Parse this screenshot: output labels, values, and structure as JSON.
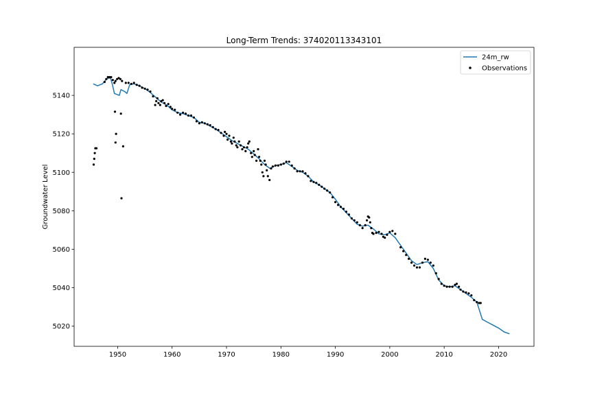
{
  "chart_data": {
    "type": "line",
    "title": "Long-Term Trends: 374020113343101",
    "xlabel": "",
    "ylabel": "Groundwater Level",
    "xlim": [
      1942,
      2026.5
    ],
    "ylim": [
      5009.5,
      5165
    ],
    "x_ticks": [
      1950,
      1960,
      1970,
      1980,
      1990,
      2000,
      2010,
      2020
    ],
    "y_ticks": [
      5020,
      5040,
      5060,
      5080,
      5100,
      5120,
      5140
    ],
    "grid": false,
    "legend_position": "top-right",
    "series": [
      {
        "name": "24m_rw",
        "kind": "line",
        "color": "#1f77b4",
        "points": [
          [
            1945.5,
            5146
          ],
          [
            1946.3,
            5145
          ],
          [
            1947.2,
            5146
          ],
          [
            1947.8,
            5148
          ],
          [
            1948.3,
            5149
          ],
          [
            1948.7,
            5149
          ],
          [
            1949.0,
            5146
          ],
          [
            1949.4,
            5141
          ],
          [
            1950.3,
            5140
          ],
          [
            1950.6,
            5143
          ],
          [
            1951.3,
            5142
          ],
          [
            1951.7,
            5141
          ],
          [
            1952.2,
            5145.5
          ],
          [
            1953,
            5146
          ],
          [
            1954,
            5145
          ],
          [
            1955,
            5143.5
          ],
          [
            1956,
            5141.5
          ],
          [
            1957,
            5139
          ],
          [
            1958,
            5136.5
          ],
          [
            1959,
            5135
          ],
          [
            1960,
            5132.5
          ],
          [
            1961,
            5131
          ],
          [
            1962,
            5130.5
          ],
          [
            1963,
            5129.5
          ],
          [
            1964,
            5128.5
          ],
          [
            1965,
            5126
          ],
          [
            1966,
            5125.5
          ],
          [
            1967,
            5124
          ],
          [
            1968,
            5122.5
          ],
          [
            1969,
            5120.5
          ],
          [
            1970,
            5118.5
          ],
          [
            1971,
            5116.5
          ],
          [
            1972,
            5115
          ],
          [
            1973,
            5113.5
          ],
          [
            1974,
            5112
          ],
          [
            1975,
            5109.5
          ],
          [
            1976,
            5107
          ],
          [
            1977,
            5104
          ],
          [
            1978,
            5102
          ],
          [
            1979,
            5103.5
          ],
          [
            1980,
            5104
          ],
          [
            1981,
            5105
          ],
          [
            1982,
            5103
          ],
          [
            1983,
            5101
          ],
          [
            1984,
            5100
          ],
          [
            1985,
            5098
          ],
          [
            1986,
            5095
          ],
          [
            1987,
            5093.5
          ],
          [
            1988,
            5091.5
          ],
          [
            1989,
            5089.5
          ],
          [
            1990,
            5086
          ],
          [
            1991,
            5082
          ],
          [
            1992,
            5079
          ],
          [
            1993,
            5076
          ],
          [
            1994,
            5073
          ],
          [
            1995,
            5072
          ],
          [
            1996,
            5072.5
          ],
          [
            1997,
            5070.5
          ],
          [
            1998,
            5068
          ],
          [
            1999,
            5067.5
          ],
          [
            2000,
            5068.5
          ],
          [
            2001,
            5066
          ],
          [
            2002,
            5062
          ],
          [
            2003,
            5058
          ],
          [
            2004,
            5054
          ],
          [
            2005,
            5052
          ],
          [
            2006,
            5053
          ],
          [
            2007,
            5053.5
          ],
          [
            2008,
            5050
          ],
          [
            2009,
            5044
          ],
          [
            2010,
            5041
          ],
          [
            2011,
            5040.5
          ],
          [
            2012,
            5041
          ],
          [
            2013,
            5039
          ],
          [
            2014,
            5037
          ],
          [
            2015,
            5035
          ],
          [
            2016,
            5032.5
          ],
          [
            2017,
            5023.5
          ],
          [
            2018,
            5022
          ],
          [
            2019,
            5020.5
          ],
          [
            2020,
            5019
          ],
          [
            2021,
            5017
          ],
          [
            2022,
            5016
          ]
        ]
      },
      {
        "name": "Observations",
        "kind": "scatter",
        "color": "#000000",
        "points": [
          [
            1945.6,
            5104
          ],
          [
            1945.7,
            5107
          ],
          [
            1945.8,
            5110
          ],
          [
            1945.9,
            5112.5
          ],
          [
            1946.1,
            5112.5
          ],
          [
            1947.6,
            5147
          ],
          [
            1947.9,
            5148.5
          ],
          [
            1948.2,
            5149.5
          ],
          [
            1948.5,
            5149.5
          ],
          [
            1948.8,
            5149.5
          ],
          [
            1949.1,
            5148
          ],
          [
            1949.4,
            5146.5
          ],
          [
            1949.6,
            5147.5
          ],
          [
            1949.9,
            5148.5
          ],
          [
            1950.2,
            5149
          ],
          [
            1950.5,
            5148.5
          ],
          [
            1950.8,
            5147.5
          ],
          [
            1949.5,
            5131.5
          ],
          [
            1949.7,
            5120
          ],
          [
            1949.6,
            5115.5
          ],
          [
            1950.6,
            5130.5
          ],
          [
            1951.0,
            5113.5
          ],
          [
            1950.7,
            5086.5
          ],
          [
            1951.5,
            5146.5
          ],
          [
            1952.0,
            5146.5
          ],
          [
            1952.5,
            5146
          ],
          [
            1953.0,
            5146.5
          ],
          [
            1953.5,
            5145.5
          ],
          [
            1954.0,
            5145
          ],
          [
            1954.5,
            5144
          ],
          [
            1955.0,
            5143.5
          ],
          [
            1955.5,
            5143
          ],
          [
            1956.0,
            5142
          ],
          [
            1956.5,
            5139.5
          ],
          [
            1956.9,
            5135
          ],
          [
            1957.1,
            5137
          ],
          [
            1957.3,
            5138.5
          ],
          [
            1957.5,
            5136
          ],
          [
            1957.8,
            5135
          ],
          [
            1958.0,
            5137
          ],
          [
            1958.3,
            5137.5
          ],
          [
            1958.6,
            5136
          ],
          [
            1958.9,
            5134.5
          ],
          [
            1959.3,
            5135.5
          ],
          [
            1959.7,
            5134
          ],
          [
            1960.0,
            5133
          ],
          [
            1960.5,
            5132.5
          ],
          [
            1961.0,
            5131
          ],
          [
            1961.5,
            5130
          ],
          [
            1962.0,
            5131
          ],
          [
            1962.5,
            5130.5
          ],
          [
            1963.0,
            5129.5
          ],
          [
            1963.5,
            5129.5
          ],
          [
            1964.0,
            5128.5
          ],
          [
            1964.5,
            5126.5
          ],
          [
            1965.0,
            5125.5
          ],
          [
            1965.5,
            5126
          ],
          [
            1966.0,
            5125.5
          ],
          [
            1966.5,
            5125
          ],
          [
            1967.0,
            5124.5
          ],
          [
            1967.5,
            5123.5
          ],
          [
            1968.0,
            5122.5
          ],
          [
            1968.5,
            5122
          ],
          [
            1969.0,
            5120.5
          ],
          [
            1969.5,
            5119
          ],
          [
            1969.7,
            5121
          ],
          [
            1970.0,
            5120
          ],
          [
            1970.2,
            5117
          ],
          [
            1970.5,
            5119
          ],
          [
            1970.8,
            5116
          ],
          [
            1971.0,
            5115
          ],
          [
            1971.3,
            5118
          ],
          [
            1971.5,
            5116
          ],
          [
            1971.8,
            5114
          ],
          [
            1972.0,
            5113
          ],
          [
            1972.3,
            5116
          ],
          [
            1972.6,
            5114
          ],
          [
            1972.9,
            5112
          ],
          [
            1973.2,
            5113
          ],
          [
            1973.5,
            5111
          ],
          [
            1973.8,
            5113
          ],
          [
            1974.0,
            5115
          ],
          [
            1974.2,
            5116
          ],
          [
            1974.5,
            5110
          ],
          [
            1974.7,
            5108
          ],
          [
            1975.0,
            5111
          ],
          [
            1975.2,
            5109
          ],
          [
            1975.5,
            5106
          ],
          [
            1975.8,
            5112
          ],
          [
            1976.0,
            5108
          ],
          [
            1976.2,
            5106
          ],
          [
            1976.4,
            5104
          ],
          [
            1976.6,
            5100
          ],
          [
            1976.8,
            5098
          ],
          [
            1977.0,
            5106
          ],
          [
            1977.2,
            5104
          ],
          [
            1977.4,
            5101
          ],
          [
            1977.6,
            5098
          ],
          [
            1977.9,
            5096
          ],
          [
            1978.2,
            5102
          ],
          [
            1978.5,
            5103
          ],
          [
            1979.0,
            5103.5
          ],
          [
            1979.5,
            5103.5
          ],
          [
            1980.0,
            5104
          ],
          [
            1980.5,
            5104.5
          ],
          [
            1981.0,
            5105.5
          ],
          [
            1981.5,
            5105.5
          ],
          [
            1982.0,
            5103.5
          ],
          [
            1982.5,
            5102
          ],
          [
            1983.0,
            5100.5
          ],
          [
            1983.5,
            5100.5
          ],
          [
            1984.0,
            5100.5
          ],
          [
            1984.5,
            5099.5
          ],
          [
            1985.0,
            5098
          ],
          [
            1985.5,
            5095.5
          ],
          [
            1986.0,
            5095
          ],
          [
            1986.5,
            5094.5
          ],
          [
            1987.0,
            5093.5
          ],
          [
            1987.5,
            5092.5
          ],
          [
            1988.0,
            5091.5
          ],
          [
            1988.5,
            5090.5
          ],
          [
            1989.0,
            5089.5
          ],
          [
            1989.5,
            5087
          ],
          [
            1990.0,
            5084.5
          ],
          [
            1990.5,
            5083
          ],
          [
            1991.0,
            5082
          ],
          [
            1991.5,
            5081
          ],
          [
            1992.0,
            5079.5
          ],
          [
            1992.5,
            5078
          ],
          [
            1993.0,
            5076
          ],
          [
            1993.5,
            5075
          ],
          [
            1994.0,
            5074
          ],
          [
            1994.5,
            5072.5
          ],
          [
            1995.0,
            5071
          ],
          [
            1995.5,
            5072.5
          ],
          [
            1995.8,
            5075
          ],
          [
            1996.0,
            5077
          ],
          [
            1996.2,
            5076.5
          ],
          [
            1996.4,
            5074
          ],
          [
            1996.6,
            5071
          ],
          [
            1996.8,
            5068.5
          ],
          [
            1997.0,
            5068
          ],
          [
            1997.5,
            5068.5
          ],
          [
            1998.0,
            5069
          ],
          [
            1998.5,
            5068
          ],
          [
            1998.8,
            5066.5
          ],
          [
            1999.1,
            5066
          ],
          [
            1999.5,
            5067.5
          ],
          [
            2000.0,
            5069
          ],
          [
            2000.5,
            5069.5
          ],
          [
            2001.0,
            5068
          ],
          [
            2002.0,
            5061
          ],
          [
            2002.5,
            5059
          ],
          [
            2003.0,
            5057
          ],
          [
            2003.5,
            5055
          ],
          [
            2004.0,
            5053
          ],
          [
            2004.5,
            5051.5
          ],
          [
            2005.0,
            5050.5
          ],
          [
            2005.5,
            5050.5
          ],
          [
            2006.0,
            5053
          ],
          [
            2006.5,
            5055
          ],
          [
            2007.0,
            5054.5
          ],
          [
            2007.5,
            5053
          ],
          [
            2008.0,
            5051.5
          ],
          [
            2008.5,
            5047.5
          ],
          [
            2009.0,
            5044.5
          ],
          [
            2009.5,
            5042
          ],
          [
            2010.0,
            5041
          ],
          [
            2010.5,
            5040.5
          ],
          [
            2011.0,
            5040.5
          ],
          [
            2011.5,
            5040.5
          ],
          [
            2012.0,
            5041.5
          ],
          [
            2012.3,
            5042
          ],
          [
            2012.7,
            5040.5
          ],
          [
            2013.0,
            5039
          ],
          [
            2013.5,
            5038
          ],
          [
            2014.0,
            5037.5
          ],
          [
            2014.5,
            5037
          ],
          [
            2015.0,
            5036
          ],
          [
            2015.5,
            5033.5
          ],
          [
            2016.0,
            5032.5
          ],
          [
            2016.4,
            5032
          ],
          [
            2016.7,
            5032
          ]
        ]
      }
    ]
  }
}
